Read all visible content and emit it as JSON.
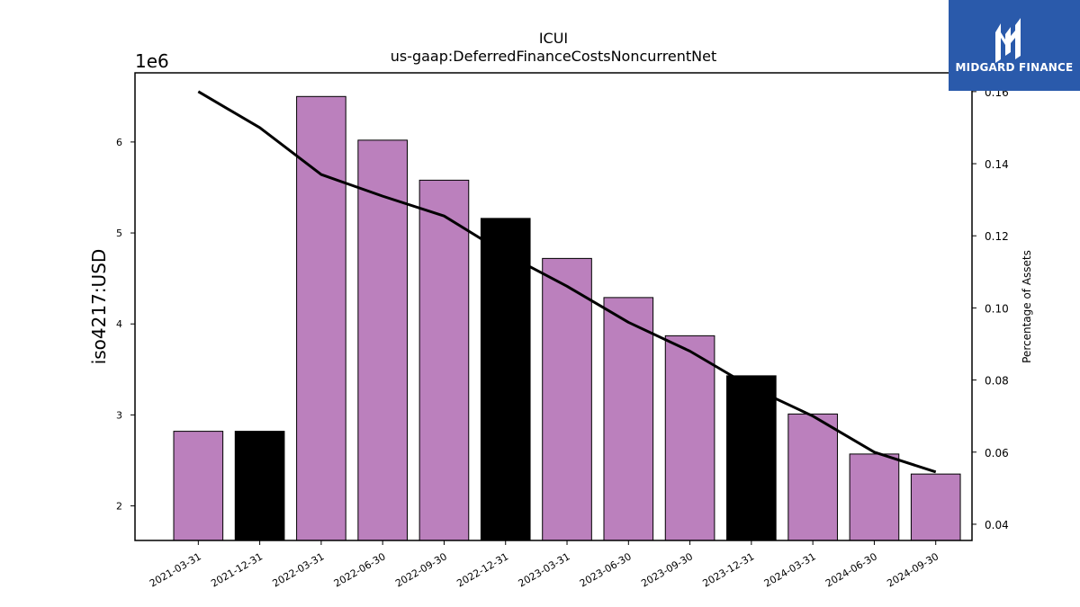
{
  "chart_data": {
    "type": "bar",
    "title": "ICUI",
    "subtitle": "us-gaap:DeferredFinanceCostsNoncurrentNet",
    "ylabel": "iso4217:USD",
    "y_offset_label": "1e6",
    "y2label": "Percentage of Assets",
    "categories": [
      "2021-03-31",
      "2021-12-31",
      "2022-03-31",
      "2022-06-30",
      "2022-09-30",
      "2022-12-31",
      "2023-03-31",
      "2023-06-30",
      "2023-09-30",
      "2023-12-31",
      "2024-03-31",
      "2024-06-30",
      "2024-09-30"
    ],
    "values": [
      2.82,
      2.82,
      6.5,
      6.02,
      5.58,
      5.16,
      4.72,
      4.29,
      3.87,
      3.43,
      3.01,
      2.57,
      2.35
    ],
    "bar_colors": [
      "#bb80bd",
      "#000000",
      "#bb80bd",
      "#bb80bd",
      "#bb80bd",
      "#000000",
      "#bb80bd",
      "#bb80bd",
      "#bb80bd",
      "#000000",
      "#bb80bd",
      "#bb80bd",
      "#bb80bd"
    ],
    "line_series": {
      "values": [
        0.16,
        0.15,
        0.137,
        0.131,
        0.1255,
        0.115,
        0.106,
        0.096,
        0.088,
        0.078,
        0.07,
        0.06,
        0.0545
      ]
    },
    "ylim": [
      1.62,
      6.76
    ],
    "yticks": [
      2,
      3,
      4,
      5,
      6
    ],
    "y2lim": [
      0.0355,
      0.1652
    ],
    "y2ticks": [
      0.04,
      0.06,
      0.08,
      0.1,
      0.12,
      0.14,
      0.16
    ],
    "y2tick_labels": [
      "0.04",
      "0.06",
      "0.08",
      "0.10",
      "0.12",
      "0.14",
      "0.16"
    ],
    "grid": false,
    "colors": {
      "bar": "#bb80bd",
      "highlight_bar": "#000000",
      "line": "#000000"
    }
  },
  "logo": {
    "text": "MIDGARD FINANCE",
    "background": "#2a5aab"
  }
}
